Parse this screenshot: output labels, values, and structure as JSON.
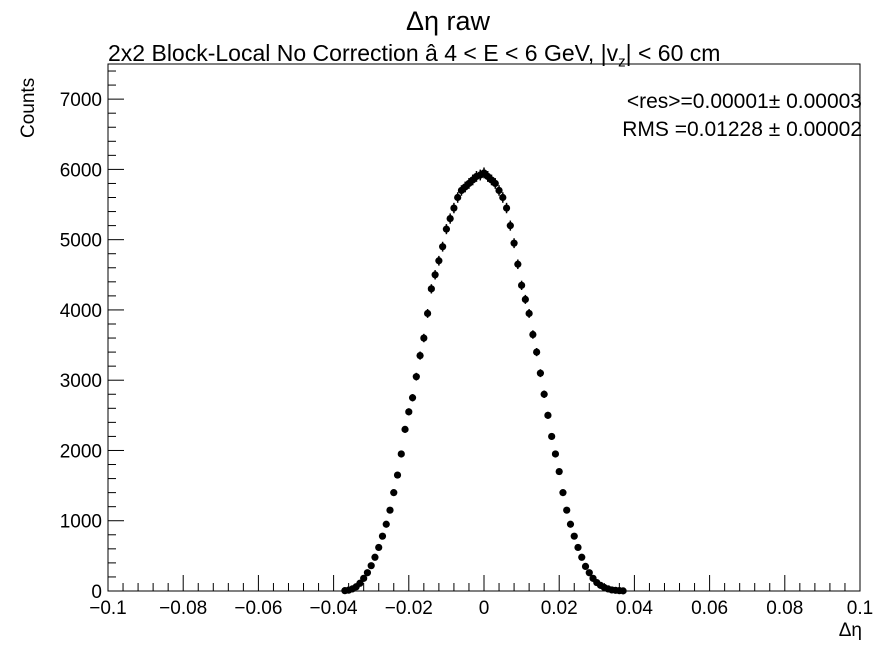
{
  "chart_data": {
    "type": "scatter",
    "title": "Δη raw",
    "subtitle": "2x2 Block-Local No Correction   â   4 < E < 6 GeV, |v",
    "subtitle_sub": "z",
    "subtitle_tail": "| < 60 cm",
    "stats": {
      "mean": "<res>=0.00001± 0.00003",
      "rms": "RMS =0.01228 ± 0.00002"
    },
    "xlabel": "Δη",
    "ylabel": "Counts",
    "xlim": [
      -0.1,
      0.1
    ],
    "ylim": [
      0,
      7500
    ],
    "xticks": [
      "−0.1",
      "−0.08",
      "−0.06",
      "−0.04",
      "−0.02",
      "0",
      "0.02",
      "0.04",
      "0.06",
      "0.08",
      "0.1"
    ],
    "xtick_values": [
      -0.1,
      -0.08,
      -0.06,
      -0.04,
      -0.02,
      0,
      0.02,
      0.04,
      0.06,
      0.08,
      0.1
    ],
    "yticks": [
      "0",
      "1000",
      "2000",
      "3000",
      "4000",
      "5000",
      "6000",
      "7000"
    ],
    "ytick_values": [
      0,
      1000,
      2000,
      3000,
      4000,
      5000,
      6000,
      7000
    ],
    "marker_color": "#000000",
    "grid": false,
    "x": [
      -0.037,
      -0.036,
      -0.035,
      -0.034,
      -0.033,
      -0.032,
      -0.031,
      -0.03,
      -0.029,
      -0.028,
      -0.027,
      -0.026,
      -0.025,
      -0.024,
      -0.023,
      -0.022,
      -0.021,
      -0.02,
      -0.019,
      -0.018,
      -0.017,
      -0.016,
      -0.015,
      -0.014,
      -0.013,
      -0.012,
      -0.011,
      -0.01,
      -0.009,
      -0.008,
      -0.007,
      -0.006,
      -0.005,
      -0.004,
      -0.003,
      -0.002,
      -0.001,
      0.0,
      0.001,
      0.002,
      0.003,
      0.004,
      0.005,
      0.006,
      0.007,
      0.008,
      0.009,
      0.01,
      0.011,
      0.012,
      0.013,
      0.014,
      0.015,
      0.016,
      0.017,
      0.018,
      0.019,
      0.02,
      0.021,
      0.022,
      0.023,
      0.024,
      0.025,
      0.026,
      0.027,
      0.028,
      0.029,
      0.03,
      0.031,
      0.032,
      0.033,
      0.034,
      0.035,
      0.036,
      0.037
    ],
    "y": [
      5,
      12,
      30,
      60,
      110,
      180,
      260,
      360,
      480,
      620,
      780,
      950,
      1150,
      1400,
      1650,
      1950,
      2300,
      2550,
      2750,
      3050,
      3350,
      3600,
      3950,
      4300,
      4500,
      4700,
      4900,
      5150,
      5300,
      5450,
      5600,
      5700,
      5750,
      5800,
      5850,
      5900,
      5920,
      5950,
      5900,
      5850,
      5800,
      5700,
      5600,
      5450,
      5200,
      4950,
      4650,
      4350,
      4150,
      3950,
      3650,
      3400,
      3100,
      2800,
      2500,
      2200,
      1950,
      1700,
      1400,
      1150,
      950,
      780,
      620,
      480,
      350,
      260,
      180,
      120,
      80,
      50,
      30,
      15,
      10,
      5,
      2
    ],
    "yerr": [
      2,
      3,
      5,
      8,
      11,
      13,
      16,
      19,
      22,
      25,
      28,
      31,
      34,
      37,
      41,
      44,
      48,
      50,
      52,
      55,
      58,
      60,
      63,
      66,
      67,
      69,
      70,
      72,
      73,
      74,
      75,
      75,
      76,
      76,
      76,
      77,
      77,
      77,
      77,
      76,
      76,
      75,
      75,
      74,
      72,
      70,
      68,
      66,
      64,
      63,
      60,
      58,
      56,
      53,
      50,
      47,
      44,
      41,
      37,
      34,
      31,
      28,
      25,
      22,
      19,
      16,
      13,
      11,
      9,
      7,
      5,
      4,
      3,
      2,
      1
    ]
  }
}
